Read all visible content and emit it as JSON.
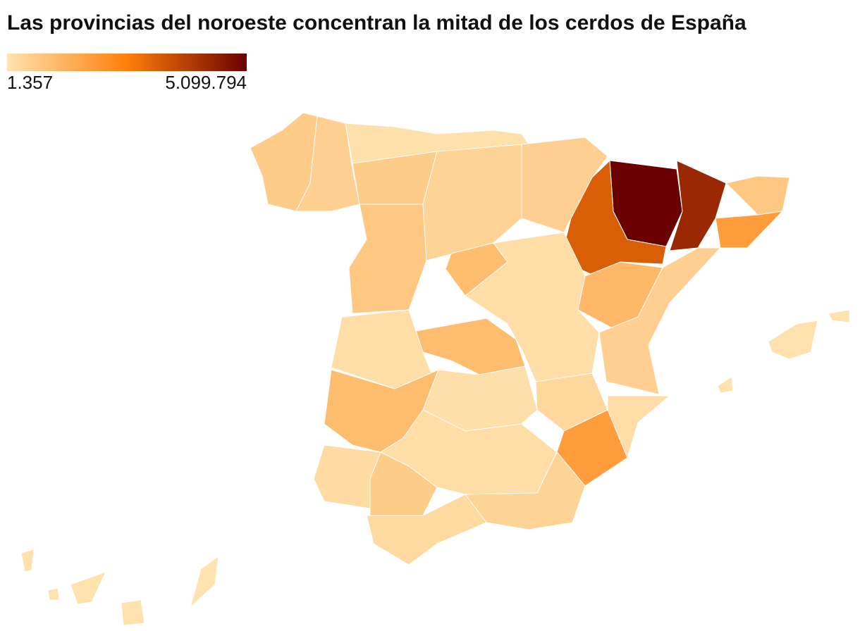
{
  "chart_data": {
    "type": "choropleth",
    "title": "Las provincias del noroeste concentran la mitad de los cerdos de España",
    "legend_ticks": [
      {
        "value": 1357,
        "label": "1.357"
      },
      {
        "value": 5099794,
        "label": "5.099.794"
      }
    ],
    "colors": [
      "#fee3b0",
      "#ff7f0a",
      "#6b0000"
    ],
    "values": [
      600000,
      500000,
      80000,
      600000,
      700000,
      400000,
      1000000,
      500000,
      5099794,
      4300000,
      3200000,
      700000,
      1800000,
      1100000,
      500000,
      150000,
      1000000,
      150000,
      1000000,
      100000,
      300000,
      150000,
      1800000,
      200000,
      150000,
      600000,
      400000,
      250000,
      60000,
      30000,
      20000,
      50000,
      40000,
      30000,
      20000,
      15000
    ]
  }
}
